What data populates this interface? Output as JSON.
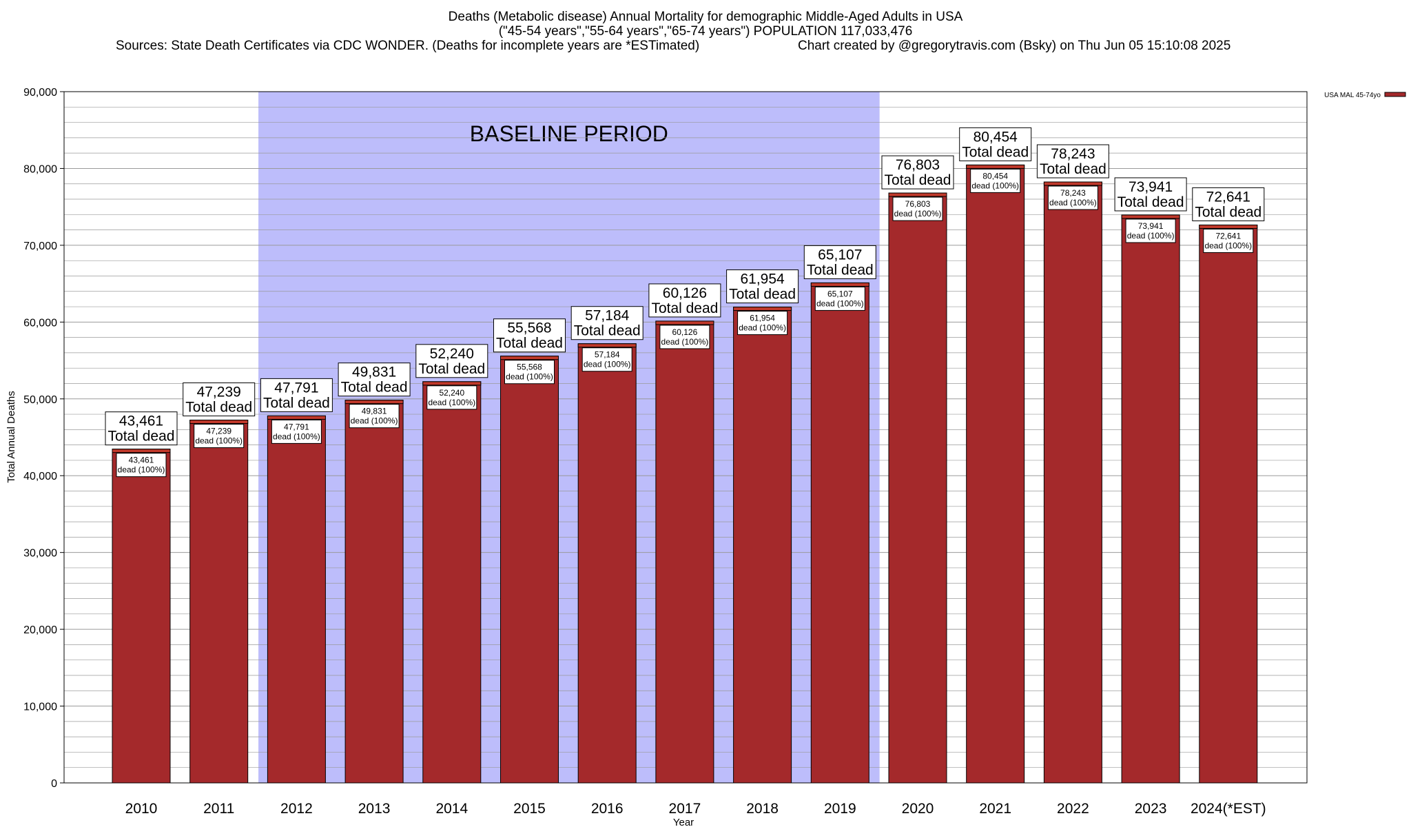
{
  "header": {
    "title_line1": "Deaths (Metabolic disease) Annual Mortality for demographic Middle-Aged Adults in USA",
    "title_line2": "(\"45-54 years\",\"55-64 years\",\"65-74 years\") POPULATION 117,033,476",
    "sources": "Sources: State Death Certificates via CDC WONDER. (Deaths for incomplete years are *ESTimated)",
    "credit": "Chart created by @gregorytravis.com (Bsky) on Thu Jun 05 15:10:08 2025"
  },
  "chart_data": {
    "type": "bar",
    "title": "Deaths (Metabolic disease) Annual Mortality for demographic Middle-Aged Adults in USA",
    "xlabel": "Year",
    "ylabel": "Total Annual Deaths",
    "ylim": [
      0,
      90000
    ],
    "yticks": [
      0,
      10000,
      20000,
      30000,
      40000,
      50000,
      60000,
      70000,
      80000,
      90000
    ],
    "ytick_labels": [
      "0",
      "10,000",
      "20,000",
      "30,000",
      "40,000",
      "50,000",
      "60,000",
      "70,000",
      "80,000",
      "90,000"
    ],
    "grid": true,
    "categories": [
      "2010",
      "2011",
      "2012",
      "2013",
      "2014",
      "2015",
      "2016",
      "2017",
      "2018",
      "2019",
      "2020",
      "2021",
      "2022",
      "2023",
      "2024(*EST)"
    ],
    "series": [
      {
        "name": "USA MAL 45-74yo",
        "values": [
          43461,
          47239,
          47791,
          49831,
          52240,
          55568,
          57184,
          60126,
          61954,
          65107,
          76803,
          80454,
          78243,
          73941,
          72641
        ]
      }
    ],
    "value_labels": [
      "43,461",
      "47,239",
      "47,791",
      "49,831",
      "52,240",
      "55,568",
      "57,184",
      "60,126",
      "61,954",
      "65,107",
      "76,803",
      "80,454",
      "78,243",
      "73,941",
      "72,641"
    ],
    "total_label": "Total dead",
    "pct_label": "dead (100%)",
    "baseline": {
      "label": "BASELINE PERIOD",
      "start": "2012",
      "end": "2019"
    },
    "legend": {
      "position": "top-right",
      "label": "USA MAL 45-74yo"
    },
    "colors": {
      "bar": "#a4292b",
      "bar_top": "#c0392b",
      "baseline_fill": "#bdbdfb",
      "grid": "#9a9a9a"
    }
  }
}
